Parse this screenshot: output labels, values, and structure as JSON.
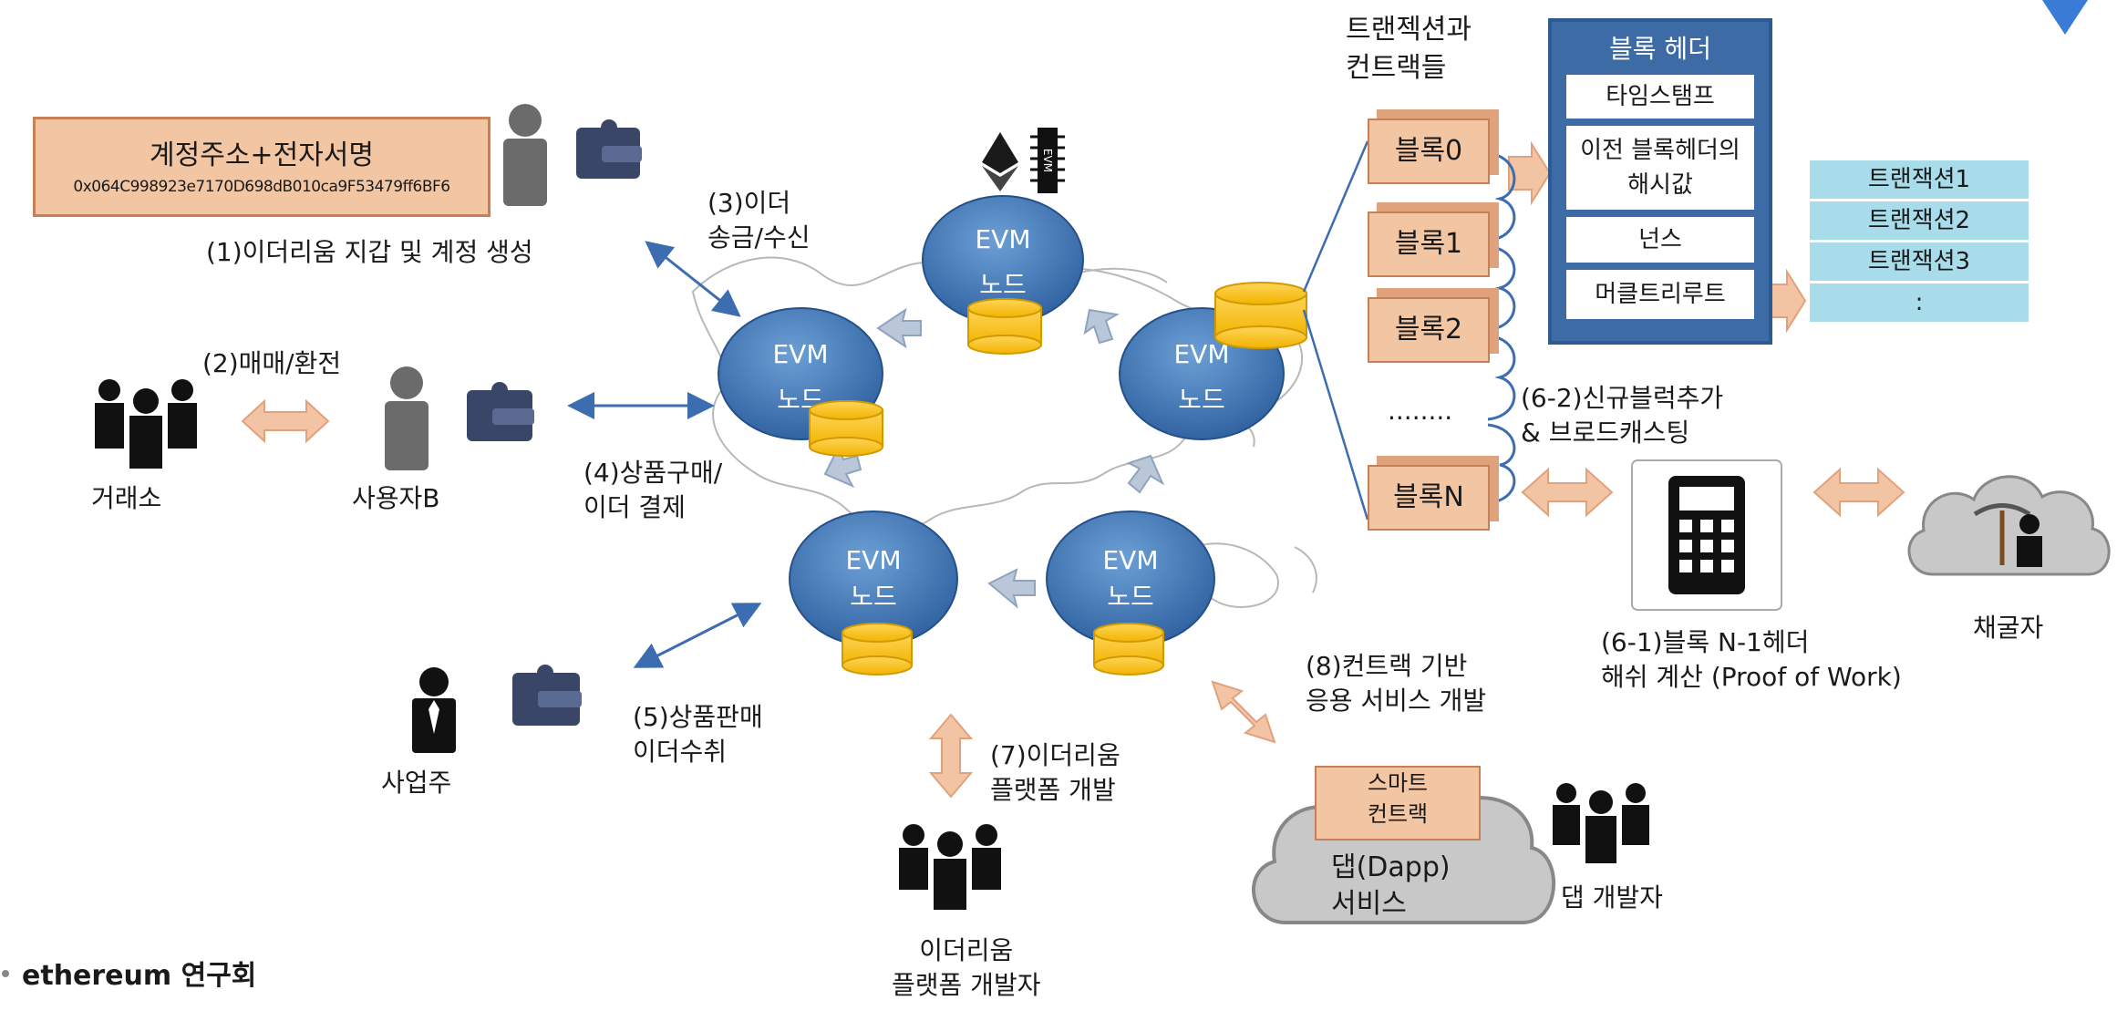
{
  "account": {
    "title": "계정주소+전자서명",
    "address": "0x064C998923e7170D698dB010ca9F53479ff6BF6"
  },
  "labels": {
    "step1": "(1)이더리움 지갑 및 계정 생성",
    "step2": "(2)매매/환전",
    "step3_l1": "(3)이더",
    "step3_l2": "송금/수신",
    "step4_l1": "(4)상품구매/",
    "step4_l2": "이더 결제",
    "step5_l1": "(5)상품판매",
    "step5_l2": "이더수취",
    "step7_l1": "(7)이더리움",
    "step7_l2": "플랫폼 개발",
    "step8_l1": "(8)컨트랙 기반",
    "step8_l2": "응용 서비스 개발",
    "step61_l1": "(6-1)블록 N-1헤더",
    "step61_l2": "해쉬 계산 (Proof of Work)",
    "step62_l1": "(6-2)신규블럭추가",
    "step62_l2": "& 브로드캐스팅",
    "tx_contracts_l1": "트랜젝션과",
    "tx_contracts_l2": "컨트랙들"
  },
  "actors": {
    "exchange": "거래소",
    "user_b": "사용자B",
    "business": "사업주",
    "platform_dev_l1": "이더리움",
    "platform_dev_l2": "플랫폼 개발자",
    "dapp_dev": "댑 개발자",
    "miner": "채굴자"
  },
  "nodes": {
    "evm": "EVM",
    "node": "노드"
  },
  "chip_label": "EVM",
  "blocks": [
    "블록0",
    "블록1",
    "블록2",
    "블록N"
  ],
  "blocks_ellipsis": "........",
  "block_header": {
    "title": "블록 헤더",
    "fields": [
      "타임스탬프",
      "이전 블록헤더의 해시값",
      "넌스",
      "머클트리루트"
    ]
  },
  "transactions": [
    "트랜잭션1",
    "트랜잭션2",
    "트랜잭션3",
    ":"
  ],
  "dapp_cloud": {
    "contract_l1": "스마트",
    "contract_l2": "컨트랙",
    "service_l1": "댑(Dapp)",
    "service_l2": "서비스"
  },
  "footer": {
    "org": "ethereum  연구회"
  },
  "colors": {
    "node_blue": "#3f78b8",
    "db_yellow": "#f7c21e",
    "block_fill": "#f2c5a3",
    "header_blue": "#3c6ba6",
    "tx_fill": "#a8dceb",
    "arrow_blue": "#3b6db0",
    "arrow_peach": "#f3c4a3",
    "cloud_gray": "#c8c8c8"
  }
}
